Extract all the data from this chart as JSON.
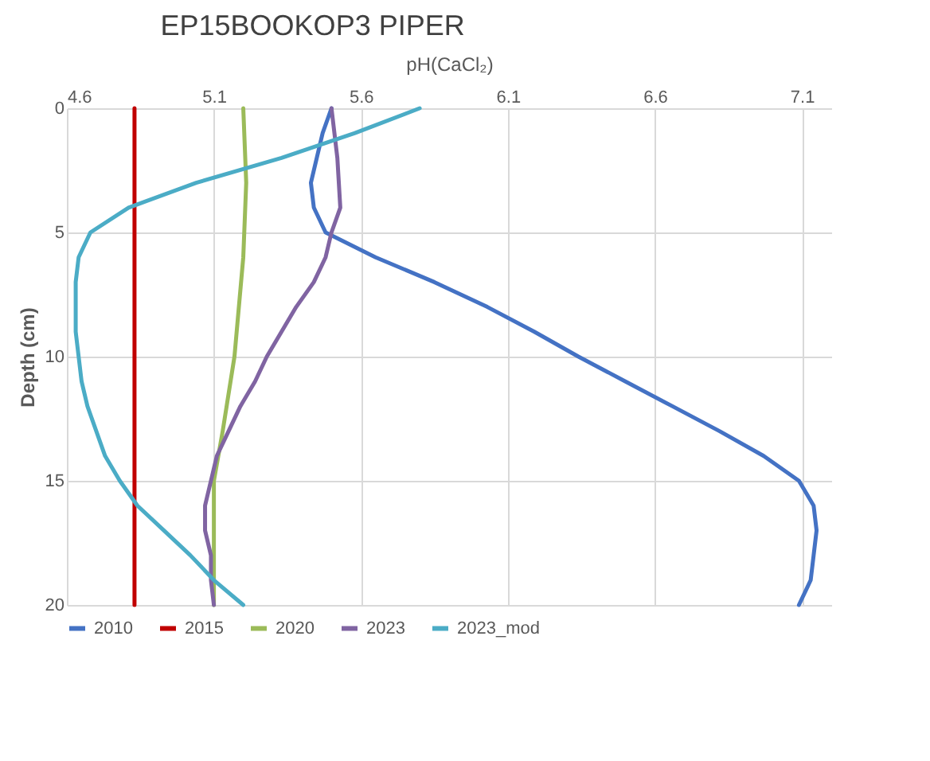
{
  "chart_data": {
    "type": "line",
    "title": "EP15BOOKOP3 PIPER",
    "xlabel": "pH(CaCl₂)",
    "ylabel": "Depth (cm)",
    "xlim": [
      4.6,
      7.2
    ],
    "xticks": [
      4.6,
      5.1,
      5.6,
      6.1,
      6.6,
      7.1
    ],
    "ylim": [
      20,
      0
    ],
    "yticks": [
      0,
      5,
      10,
      15,
      20
    ],
    "grid": true,
    "legend": "bottom",
    "series": [
      {
        "name": "2010",
        "color": "#4472c4",
        "x": [
          5.5,
          5.47,
          5.45,
          5.43,
          5.44,
          5.48,
          5.65,
          5.85,
          6.03,
          6.19,
          6.34,
          6.5,
          6.66,
          6.82,
          6.97,
          7.09,
          7.14,
          7.15,
          7.14,
          7.13,
          7.09
        ],
        "values": [
          0,
          1,
          2,
          3,
          4,
          5,
          6,
          7,
          8,
          9,
          10,
          11,
          12,
          13,
          14,
          15,
          16,
          17,
          18,
          19,
          20
        ]
      },
      {
        "name": "2015",
        "color": "#c00000",
        "x": [
          4.83,
          4.83
        ],
        "values": [
          0,
          20
        ]
      },
      {
        "name": "2020",
        "color": "#9bbb59",
        "x": [
          5.2,
          5.21,
          5.2,
          5.17,
          5.13,
          5.1,
          5.1,
          5.1
        ],
        "values": [
          0,
          3,
          6,
          10,
          13,
          15,
          18,
          20
        ]
      },
      {
        "name": "2023",
        "color": "#8064a2",
        "x": [
          5.5,
          5.52,
          5.53,
          5.5,
          5.48,
          5.44,
          5.38,
          5.33,
          5.28,
          5.24,
          5.19,
          5.15,
          5.11,
          5.09,
          5.07,
          5.07,
          5.09,
          5.09,
          5.1
        ],
        "values": [
          0,
          2,
          4,
          5,
          6,
          7,
          8,
          9,
          10,
          11,
          12,
          13,
          14,
          15,
          16,
          17,
          18,
          19,
          20
        ]
      },
      {
        "name": "2023_mod",
        "color": "#4bacc6",
        "x": [
          5.8,
          5.58,
          5.33,
          5.04,
          4.81,
          4.68,
          4.64,
          4.63,
          4.63,
          4.63,
          4.64,
          4.65,
          4.67,
          4.7,
          4.73,
          4.78,
          4.84,
          4.93,
          5.02,
          5.1,
          5.2
        ],
        "values": [
          0,
          1,
          2,
          3,
          4,
          5,
          6,
          7,
          8,
          9,
          10,
          11,
          12,
          13,
          14,
          15,
          16,
          17,
          18,
          19,
          20
        ]
      }
    ]
  }
}
